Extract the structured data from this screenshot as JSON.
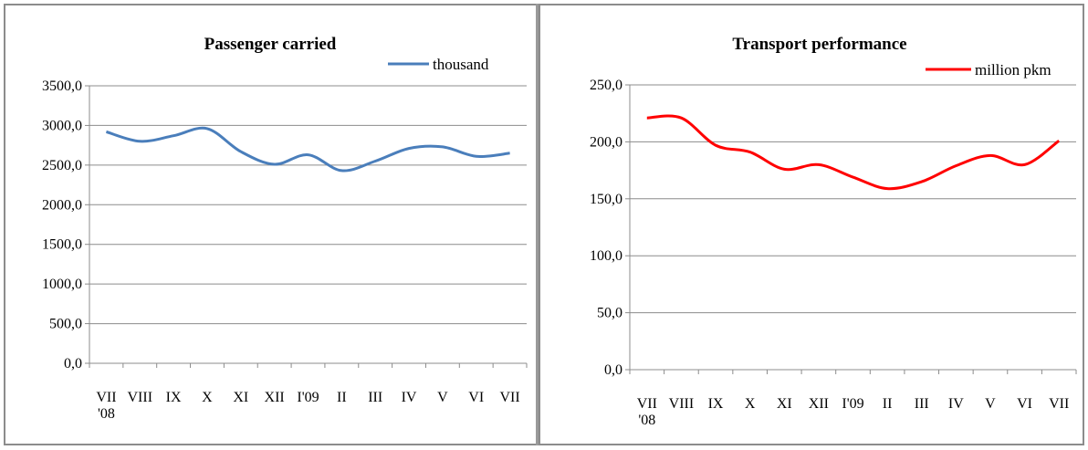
{
  "chart_data": [
    {
      "type": "line",
      "title": "Passenger carried",
      "categories": [
        "VII '08",
        "VIII",
        "IX",
        "X",
        "XI",
        "XII",
        "I'09",
        "II",
        "III",
        "IV",
        "V",
        "VI",
        "VII"
      ],
      "series": [
        {
          "name": "thousand",
          "color": "#4a7ebb",
          "values": [
            2920,
            2800,
            2870,
            2960,
            2670,
            2510,
            2630,
            2430,
            2550,
            2710,
            2730,
            2610,
            2650
          ]
        }
      ],
      "ylim": [
        0,
        3500
      ],
      "yticks": [
        0,
        500,
        1000,
        1500,
        2000,
        2500,
        3000,
        3500
      ],
      "ytick_labels": [
        "0,0",
        "500,0",
        "1000,0",
        "1500,0",
        "2000,0",
        "2500,0",
        "3000,0",
        "3500,0"
      ],
      "xtick_labels": [
        "VII",
        "VIII",
        "IX",
        "X",
        "XI",
        "XII",
        "I'09",
        "II",
        "III",
        "IV",
        "V",
        "VI",
        "VII"
      ],
      "xtick_sublabel": "'08",
      "legend_position": "top-right",
      "grid": true
    },
    {
      "type": "line",
      "title": "Transport performance",
      "categories": [
        "VII '08",
        "VIII",
        "IX",
        "X",
        "XI",
        "XII",
        "I'09",
        "II",
        "III",
        "IV",
        "V",
        "VI",
        "VII"
      ],
      "series": [
        {
          "name": "million pkm",
          "color": "#ff0000",
          "values": [
            221,
            221,
            197,
            191,
            176,
            180,
            169,
            159,
            165,
            179,
            188,
            180,
            201
          ]
        }
      ],
      "ylim": [
        0,
        250
      ],
      "yticks": [
        0,
        50,
        100,
        150,
        200,
        250
      ],
      "ytick_labels": [
        "0,0",
        "50,0",
        "100,0",
        "150,0",
        "200,0",
        "250,0"
      ],
      "xtick_labels": [
        "VII",
        "VIII",
        "IX",
        "X",
        "XI",
        "XII",
        "I'09",
        "II",
        "III",
        "IV",
        "V",
        "VI",
        "VII"
      ],
      "xtick_sublabel": "'08",
      "legend_position": "top-right",
      "grid": true
    }
  ]
}
